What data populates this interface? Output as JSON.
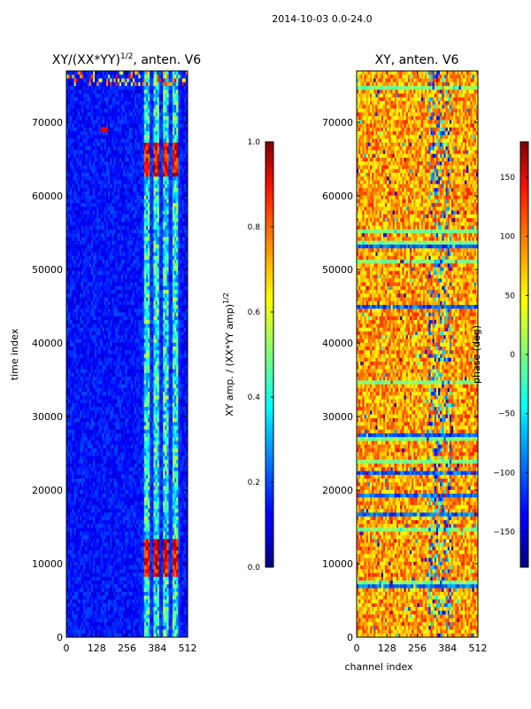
{
  "suptitle": "2014-10-03 0.0-24.0",
  "chart_data": [
    {
      "type": "heatmap",
      "title": "XY/(XX*YY)",
      "title_exponent": "1/2",
      "title_suffix": ", anten. V6",
      "xlabel": "",
      "ylabel": "time index",
      "xlim": [
        0,
        512
      ],
      "ylim": [
        0,
        77000
      ],
      "xticks": [
        0,
        128,
        256,
        384,
        512
      ],
      "yticks": [
        0,
        10000,
        20000,
        30000,
        40000,
        50000,
        60000,
        70000
      ],
      "colormap": "jet",
      "colorbar": {
        "label": "XY amp. / (XX*YY amp)",
        "label_exponent": "1/2",
        "vmin": 0.0,
        "vmax": 1.0,
        "ticks": [
          "0.0",
          "0.2",
          "0.4",
          "0.6",
          "0.8",
          "1.0"
        ]
      }
    },
    {
      "type": "heatmap",
      "title": "XY, anten. V6",
      "xlabel": "channel index",
      "ylabel": "",
      "xlim": [
        0,
        512
      ],
      "ylim": [
        0,
        77000
      ],
      "xticks": [
        0,
        128,
        256,
        384,
        512
      ],
      "yticks": [
        0,
        10000,
        20000,
        30000,
        40000,
        50000,
        60000,
        70000
      ],
      "colormap": "jet",
      "colorbar": {
        "label": "phase (deg)",
        "vmin": -180,
        "vmax": 180,
        "ticks": [
          "−150",
          "−100",
          "−50",
          "0",
          "50",
          "100",
          "150"
        ]
      }
    }
  ]
}
